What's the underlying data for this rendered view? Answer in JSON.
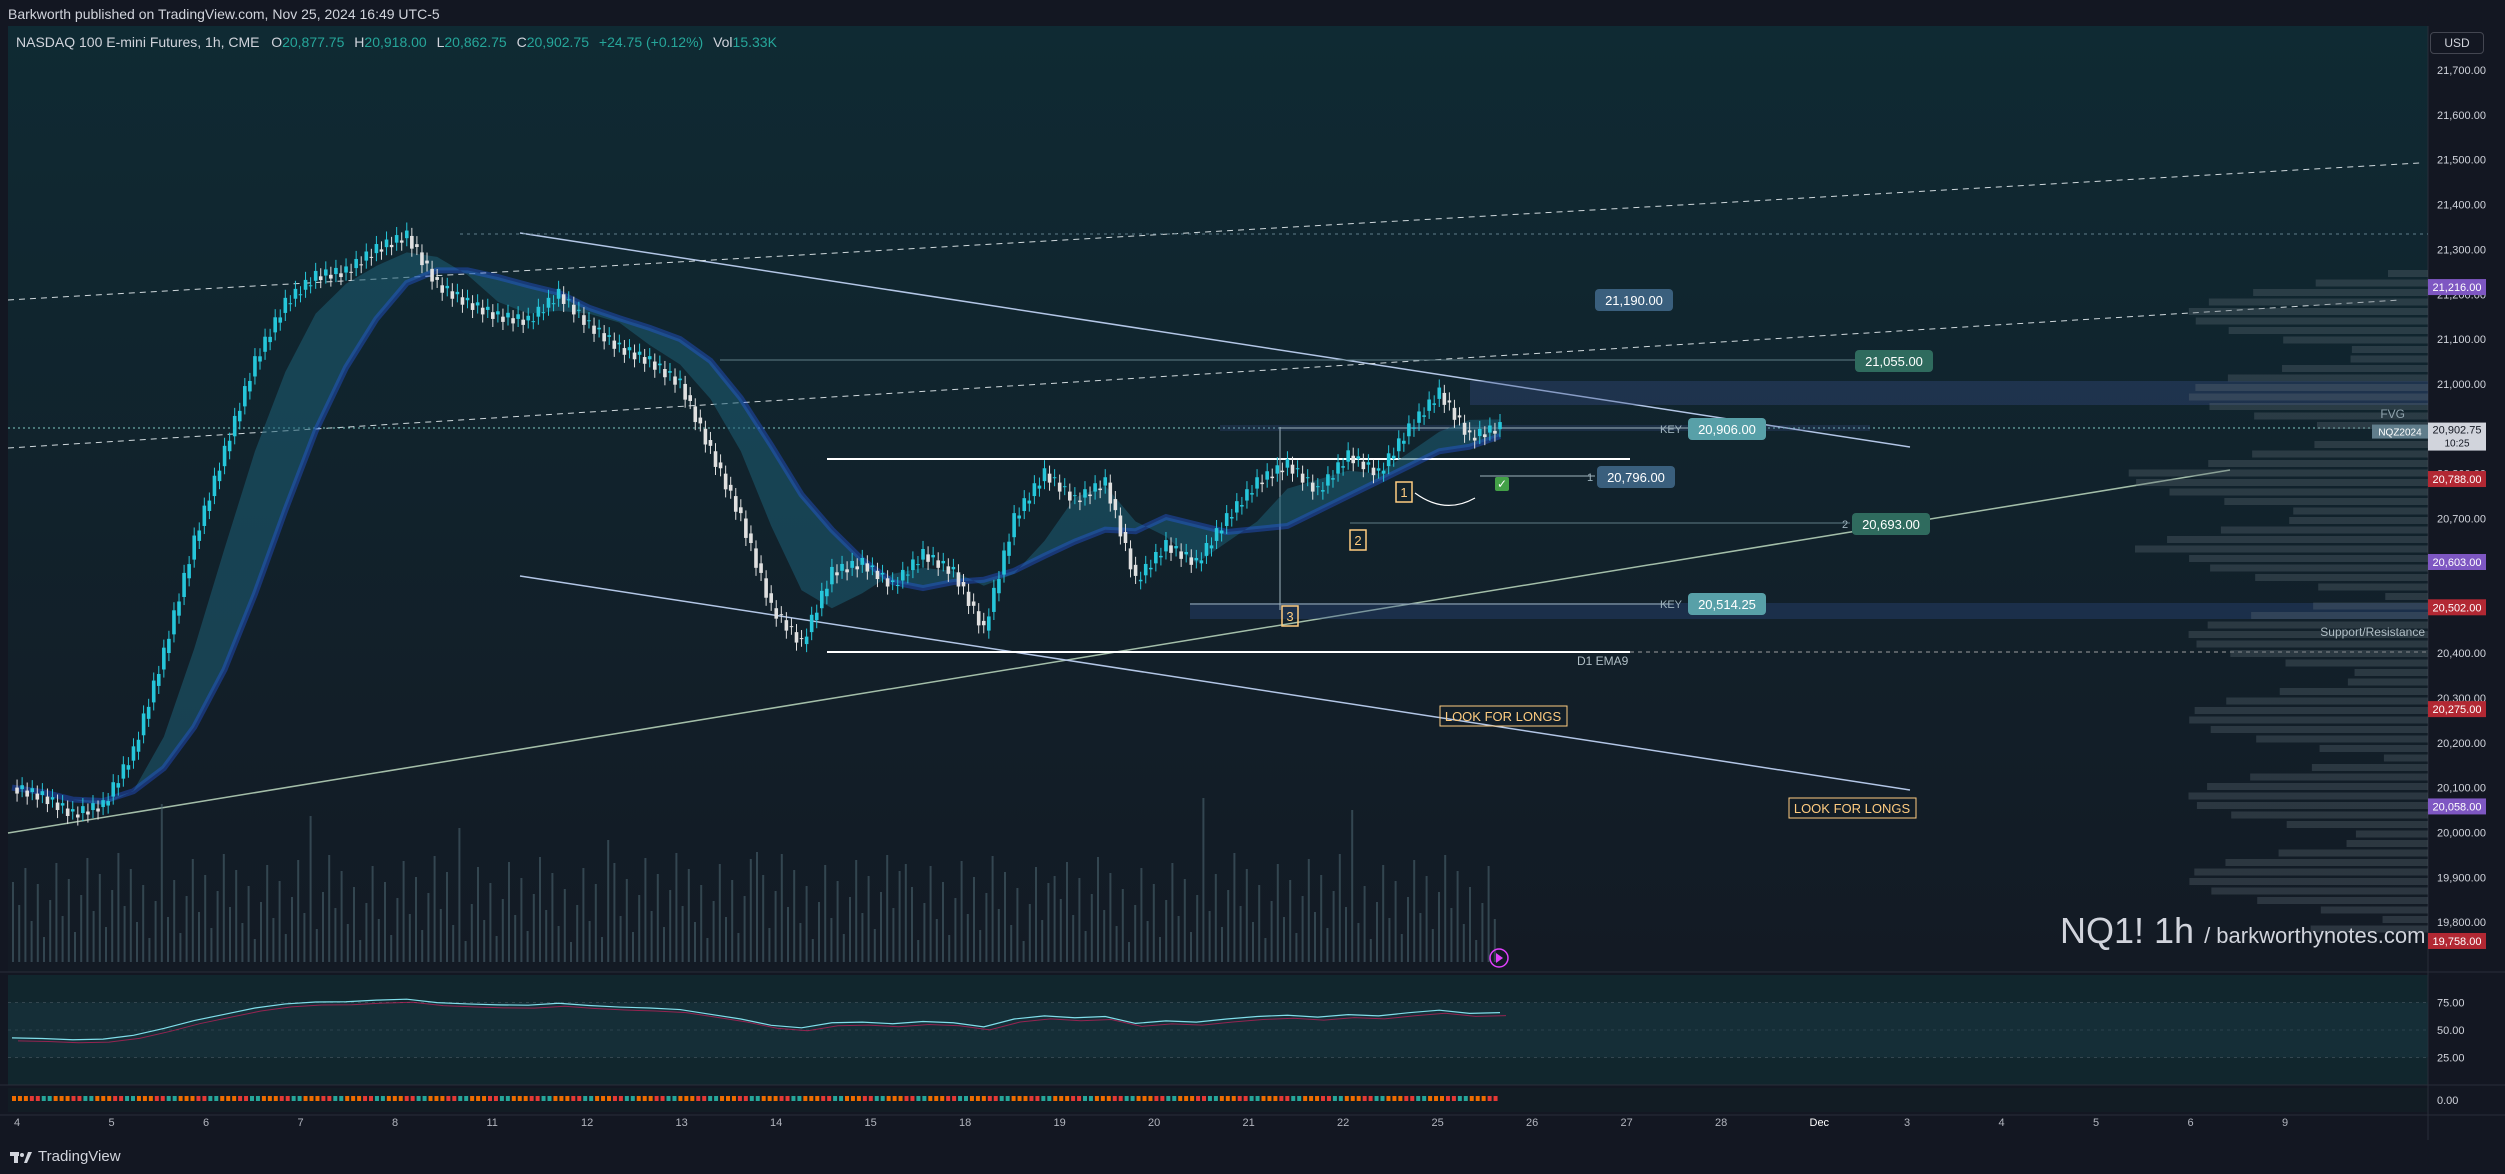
{
  "header": {
    "published": "Barkworth published on TradingView.com, Nov 25, 2024 16:49 UTC-5",
    "symbol": "NASDAQ 100 E-mini Futures, 1h, CME",
    "open_k": "O",
    "open": "20,877.75",
    "high_k": "H",
    "high": "20,918.00",
    "low_k": "L",
    "low": "20,862.75",
    "close_k": "C",
    "close": "20,902.75",
    "change": "+24.75 (+0.12%)",
    "vol_k": "Vol",
    "vol": "15.33K"
  },
  "currency": "USD",
  "watermark": {
    "ticker": "NQ1! 1h",
    "site": "/ barkworthynotes.com"
  },
  "footer": {
    "brand": "TradingView"
  },
  "colors": {
    "bg": "#131722",
    "up": "#26a69a",
    "down": "#ef5350",
    "text": "#d1d4dc",
    "level_box": "#3a5f7d"
  },
  "chart_data": {
    "type": "candlestick",
    "y_ticks": [
      21700,
      21600,
      21500,
      21400,
      21300,
      21200,
      21100,
      21000,
      20900,
      20800,
      20700,
      20600,
      20500,
      20400,
      20300,
      20200,
      20100,
      20000,
      19900,
      19800
    ],
    "y_tick_labels": [
      "21,700.00",
      "21,600.00",
      "21,500.00",
      "21,400.00",
      "21,300.00",
      "21,200.00",
      "21,100.00",
      "21,000.00",
      "20,900.00",
      "20,800.00",
      "20,700.00",
      "20,600.00",
      "20,500.00",
      "20,400.00",
      "20,300.00",
      "20,200.00",
      "20,100.00",
      "20,000.00",
      "19,900.00",
      "19,800.00"
    ],
    "x_labels": [
      "4",
      "5",
      "6",
      "7",
      "8",
      "11",
      "12",
      "13",
      "14",
      "15",
      "18",
      "19",
      "20",
      "21",
      "22",
      "25",
      "26",
      "27",
      "28",
      "Dec",
      "3",
      "4",
      "5",
      "6",
      "9"
    ],
    "price_tags": [
      {
        "value": 21216,
        "label": "21,216.00",
        "color": "#7e57c2"
      },
      {
        "value": 20902.75,
        "label": "20,902.75",
        "color": "#d1d4dc"
      },
      {
        "value": 20788,
        "label": "20,788.00",
        "color": "#b22833"
      },
      {
        "value": 20603,
        "label": "20,603.00",
        "color": "#7e57c2"
      },
      {
        "value": 20502,
        "label": "20,502.00",
        "color": "#b22833"
      },
      {
        "value": 20275,
        "label": "20,275.00",
        "color": "#b22833"
      },
      {
        "value": 20058,
        "label": "20,058.00",
        "color": "#7e57c2"
      },
      {
        "value": 19758,
        "label": "19,758.00",
        "color": "#b22833"
      }
    ],
    "current_tag": {
      "symbol": "NQZ2024",
      "price": "20,902.75",
      "countdown": "10:25"
    },
    "levels": [
      {
        "value": 21190,
        "label": "21,190.00",
        "color": "#3a5f7d"
      },
      {
        "value": 21055,
        "label": "21,055.00",
        "color": "#2f6b5e"
      },
      {
        "value": 20906,
        "label": "20,906.00",
        "prefix": "KEY",
        "color": "#58a0a8"
      },
      {
        "value": 20796,
        "label": "20,796.00",
        "prefix": "1",
        "color": "#3a5f7d"
      },
      {
        "value": 20693,
        "label": "20,693.00",
        "prefix": "2",
        "color": "#2f6b5e"
      },
      {
        "value": 20514.25,
        "label": "20,514.25",
        "prefix": "KEY",
        "color": "#58a0a8"
      }
    ],
    "annotations": {
      "fvg": "FVG",
      "support_resistance": "Support/Resistance",
      "d1_ema9": "D1 EMA9",
      "look_for_longs": "LOOK FOR LONGS",
      "marker_1": "1",
      "marker_2": "2",
      "marker_3": "3"
    },
    "closes_sample": [
      20100,
      20080,
      20040,
      20060,
      20180,
      20400,
      20650,
      20850,
      21050,
      21180,
      21240,
      21250,
      21300,
      21330,
      21220,
      21180,
      21150,
      21140,
      21200,
      21130,
      21080,
      21050,
      21000,
      20850,
      20700,
      20500,
      20420,
      20580,
      20600,
      20550,
      20620,
      20580,
      20450,
      20700,
      20800,
      20740,
      20780,
      20560,
      20640,
      20600,
      20700,
      20780,
      20820,
      20760,
      20840,
      20800,
      20900,
      20980,
      20880,
      20903
    ],
    "oscillator": {
      "ticks": [
        "75.00",
        "50.00",
        "25.00"
      ],
      "range": [
        0,
        100
      ]
    },
    "volume_axis_label": "0.00"
  }
}
